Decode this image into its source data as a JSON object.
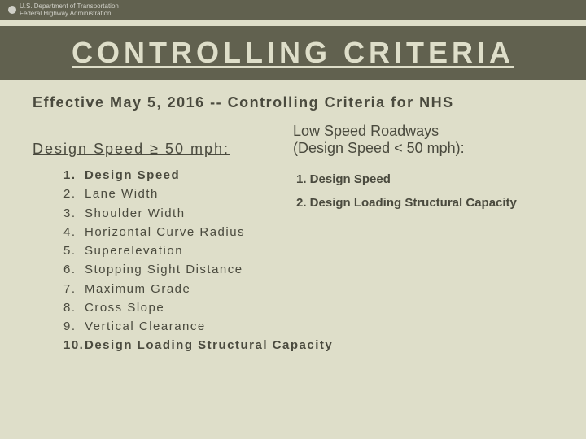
{
  "colors": {
    "background": "#dedec9",
    "bar": "#61614f",
    "title_text": "#dedec9",
    "body_text": "#4a4a3e"
  },
  "header": {
    "agency_line1": "U.S. Department of Transportation",
    "agency_line2": "Federal Highway Administration"
  },
  "title": "CONTROLLING CRITERIA",
  "effective": "Effective May 5, 2016 -- Controlling Criteria for NHS",
  "left": {
    "heading": "Design Speed ≥ 50 mph:",
    "items": [
      {
        "n": "1.",
        "t": "Design Speed",
        "bold": true
      },
      {
        "n": "2.",
        "t": "Lane Width",
        "bold": false
      },
      {
        "n": "3.",
        "t": "Shoulder Width",
        "bold": false
      },
      {
        "n": "4.",
        "t": "Horizontal Curve Radius",
        "bold": false
      },
      {
        "n": "5.",
        "t": "Superelevation",
        "bold": false
      },
      {
        "n": "6.",
        "t": "Stopping Sight Distance",
        "bold": false
      },
      {
        "n": "7.",
        "t": "Maximum Grade",
        "bold": false
      },
      {
        "n": "8.",
        "t": "Cross Slope",
        "bold": false
      },
      {
        "n": "9.",
        "t": "Vertical Clearance",
        "bold": false
      }
    ]
  },
  "right": {
    "heading_line1": "Low Speed Roadways",
    "heading_line2": "(Design Speed < 50 mph):",
    "items": [
      "1. Design Speed",
      "2. Design Loading Structural Capacity"
    ]
  },
  "wide_item": {
    "n": "10.",
    "t": "Design Loading Structural Capacity"
  }
}
